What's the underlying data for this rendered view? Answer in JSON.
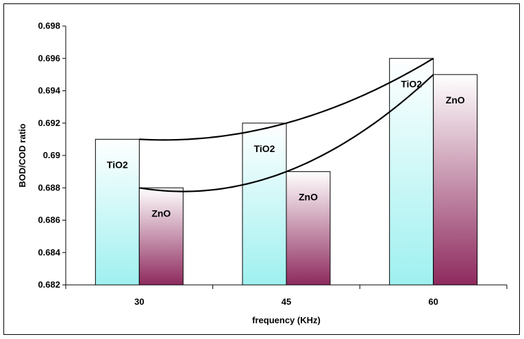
{
  "chart_data": {
    "type": "bar",
    "title": "",
    "xlabel": "frequency (KHz)",
    "ylabel": "BOD/COD ratio",
    "categories": [
      "30",
      "45",
      "60"
    ],
    "ylim": [
      0.682,
      0.698
    ],
    "yticks": [
      "0.682",
      "0.684",
      "0.686",
      "0.688",
      "0.69",
      "0.692",
      "0.694",
      "0.696",
      "0.698"
    ],
    "grid": false,
    "legend": "none",
    "series": [
      {
        "name": "TiO2",
        "values": [
          0.691,
          0.692,
          0.696
        ],
        "bar_label": "TiO2",
        "gradient": [
          "#ffffff",
          "#9ff0f0"
        ]
      },
      {
        "name": "ZnO",
        "values": [
          0.688,
          0.689,
          0.695
        ],
        "bar_label": "ZnO",
        "gradient": [
          "#ffffff",
          "#8e2a5e"
        ]
      }
    ],
    "trendlines": [
      {
        "series": "TiO2",
        "type": "polynomial"
      },
      {
        "series": "ZnO",
        "type": "polynomial"
      }
    ]
  }
}
